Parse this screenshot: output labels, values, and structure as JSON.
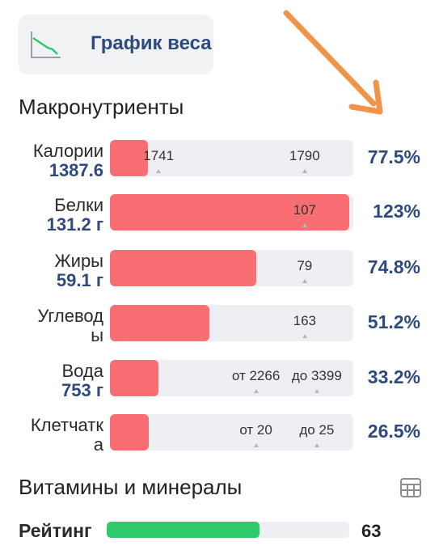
{
  "weight_chart": {
    "label": "График веса",
    "icon": "line-chart-icon"
  },
  "macros": {
    "title": "Макронутриенты",
    "rows": [
      {
        "name": "Калории",
        "value": "1387.6",
        "fill_fraction": 0.155,
        "marks": [
          {
            "text": "1741",
            "at": 0.2
          },
          {
            "text": "1790",
            "at": 0.8
          }
        ],
        "percent": "77.5%"
      },
      {
        "name": "Белки",
        "value": "131.2 г",
        "fill_fraction": 0.985,
        "marks": [
          {
            "text": "107",
            "at": 0.8
          }
        ],
        "percent": "123%"
      },
      {
        "name": "Жиры",
        "value": "59.1 г",
        "fill_fraction": 0.6,
        "marks": [
          {
            "text": "79",
            "at": 0.8
          }
        ],
        "percent": "74.8%"
      },
      {
        "name": "Углеводы",
        "value": "",
        "fill_fraction": 0.41,
        "marks": [
          {
            "text": "163",
            "at": 0.8
          }
        ],
        "percent": "51.2%"
      },
      {
        "name": "Вода",
        "value": "753 г",
        "fill_fraction": 0.2,
        "marks": [
          {
            "text": "от 2266",
            "at": 0.6
          },
          {
            "text": "до 3399",
            "at": 0.85
          }
        ],
        "percent": "33.2%"
      },
      {
        "name": "Клетчатка",
        "value": "",
        "fill_fraction": 0.16,
        "marks": [
          {
            "text": "от 20",
            "at": 0.6
          },
          {
            "text": "до 25",
            "at": 0.85
          }
        ],
        "percent": "26.5%"
      }
    ]
  },
  "vitamins": {
    "title": "Витамины и минералы",
    "icon": "table-grid-icon"
  },
  "rating": {
    "label": "Рейтинг",
    "value": "63",
    "fill_fraction": 0.63
  },
  "colors": {
    "accent": "#2f4a7f",
    "bar": "#f86e72",
    "rating": "#2ec96a",
    "arrow": "#f0944a"
  }
}
